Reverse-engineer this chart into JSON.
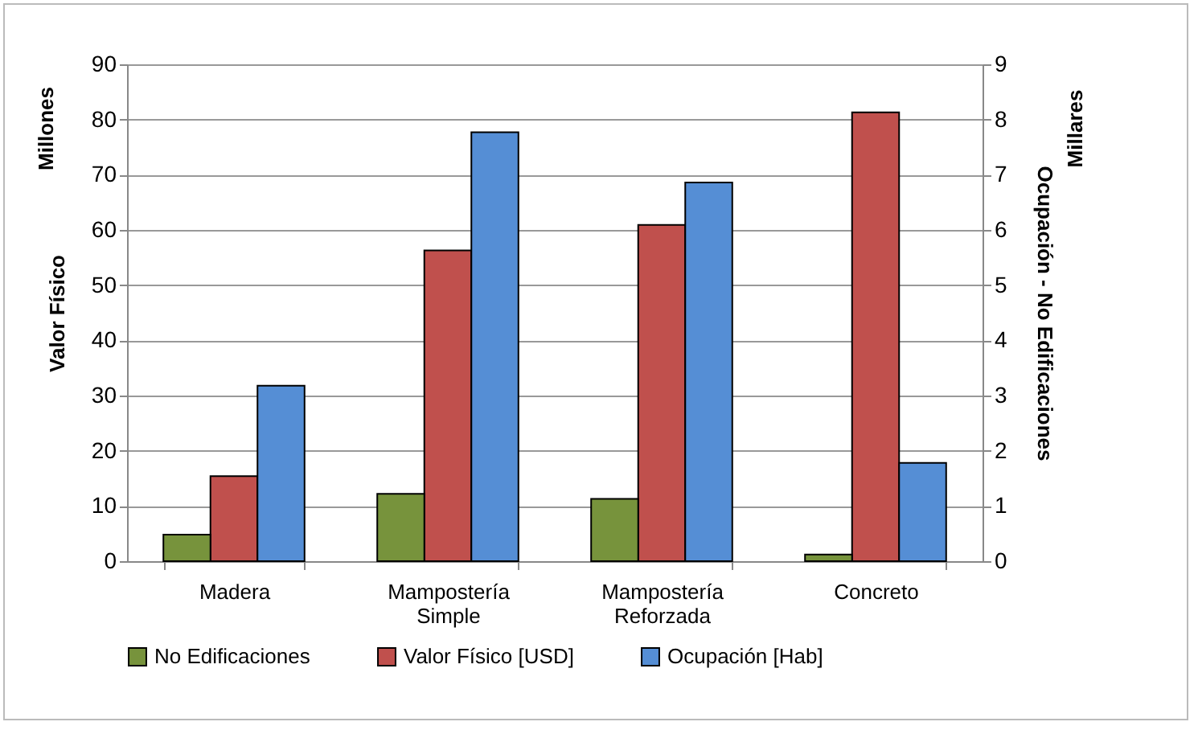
{
  "chart_data": {
    "type": "bar",
    "ylabel": "Valor Físico",
    "y2label": "Ocupación - No Edificaciones",
    "annotations": [
      "Millones",
      "Millares"
    ],
    "categories": [
      "Madera",
      "Mampostería Simple",
      "Mampostería Reforzada",
      "Concreto"
    ],
    "series": [
      {
        "name": "No Edificaciones",
        "color": "#77933c",
        "axis": "y2",
        "values": [
          0.48,
          1.22,
          1.13,
          0.12
        ]
      },
      {
        "name": "Valor Físico [USD]",
        "color": "#c0504d",
        "values": [
          15.4,
          56.3,
          60.9,
          81.3
        ]
      },
      {
        "name": "Ocupación [Hab]",
        "color": "#558ed5",
        "axis": "y2",
        "values": [
          3.18,
          7.77,
          6.86,
          1.78
        ]
      }
    ],
    "ylim": [
      0,
      90
    ],
    "yticks": [
      0,
      10,
      20,
      30,
      40,
      50,
      60,
      70,
      80,
      90
    ],
    "y2lim": [
      0,
      9
    ],
    "y2ticks": [
      0,
      1,
      2,
      3,
      4,
      5,
      6,
      7,
      8,
      9
    ],
    "grid": "y",
    "legend": "bottom"
  }
}
